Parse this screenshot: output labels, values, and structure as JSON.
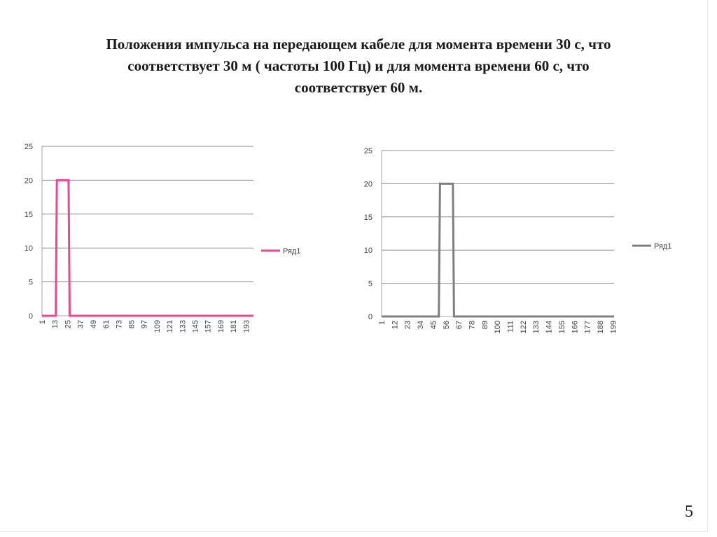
{
  "slide": {
    "title_lines": [
      "Положения  импульса на передающем кабеле для момента времени 30 с, что",
      "соответствует 30 м ( частоты 100 Гц)  и  для момента времени 60 с, что",
      "соответствует 60 м."
    ],
    "page_number": "5"
  },
  "chart_data": [
    {
      "type": "line",
      "series": [
        {
          "name": "Ряд1",
          "color": "#e8498f",
          "points": [
            [
              1,
              0
            ],
            [
              14,
              0
            ],
            [
              15,
              20
            ],
            [
              26,
              20
            ],
            [
              27,
              0
            ],
            [
              200,
              0
            ]
          ]
        }
      ],
      "x_domain": [
        1,
        200
      ],
      "x_ticks": [
        "1",
        "13",
        "25",
        "37",
        "49",
        "61",
        "73",
        "85",
        "97",
        "109",
        "121",
        "133",
        "145",
        "157",
        "169",
        "181",
        "193"
      ],
      "y_ticks": [
        "0",
        "5",
        "10",
        "15",
        "20",
        "25"
      ],
      "ylim": [
        0,
        25
      ],
      "grid": true,
      "legend_position": "right"
    },
    {
      "type": "line",
      "series": [
        {
          "name": "Ряд1",
          "color": "#7f7f7f",
          "points": [
            [
              1,
              0
            ],
            [
              50,
              0
            ],
            [
              51,
              20
            ],
            [
              62,
              20
            ],
            [
              63,
              0
            ],
            [
              200,
              0
            ]
          ]
        }
      ],
      "x_domain": [
        1,
        200
      ],
      "x_ticks": [
        "1",
        "12",
        "23",
        "34",
        "45",
        "56",
        "67",
        "78",
        "89",
        "100",
        "111",
        "122",
        "133",
        "144",
        "155",
        "166",
        "177",
        "188",
        "199"
      ],
      "y_ticks": [
        "0",
        "5",
        "10",
        "15",
        "20",
        "25"
      ],
      "ylim": [
        0,
        25
      ],
      "grid": true,
      "legend_position": "right"
    }
  ]
}
